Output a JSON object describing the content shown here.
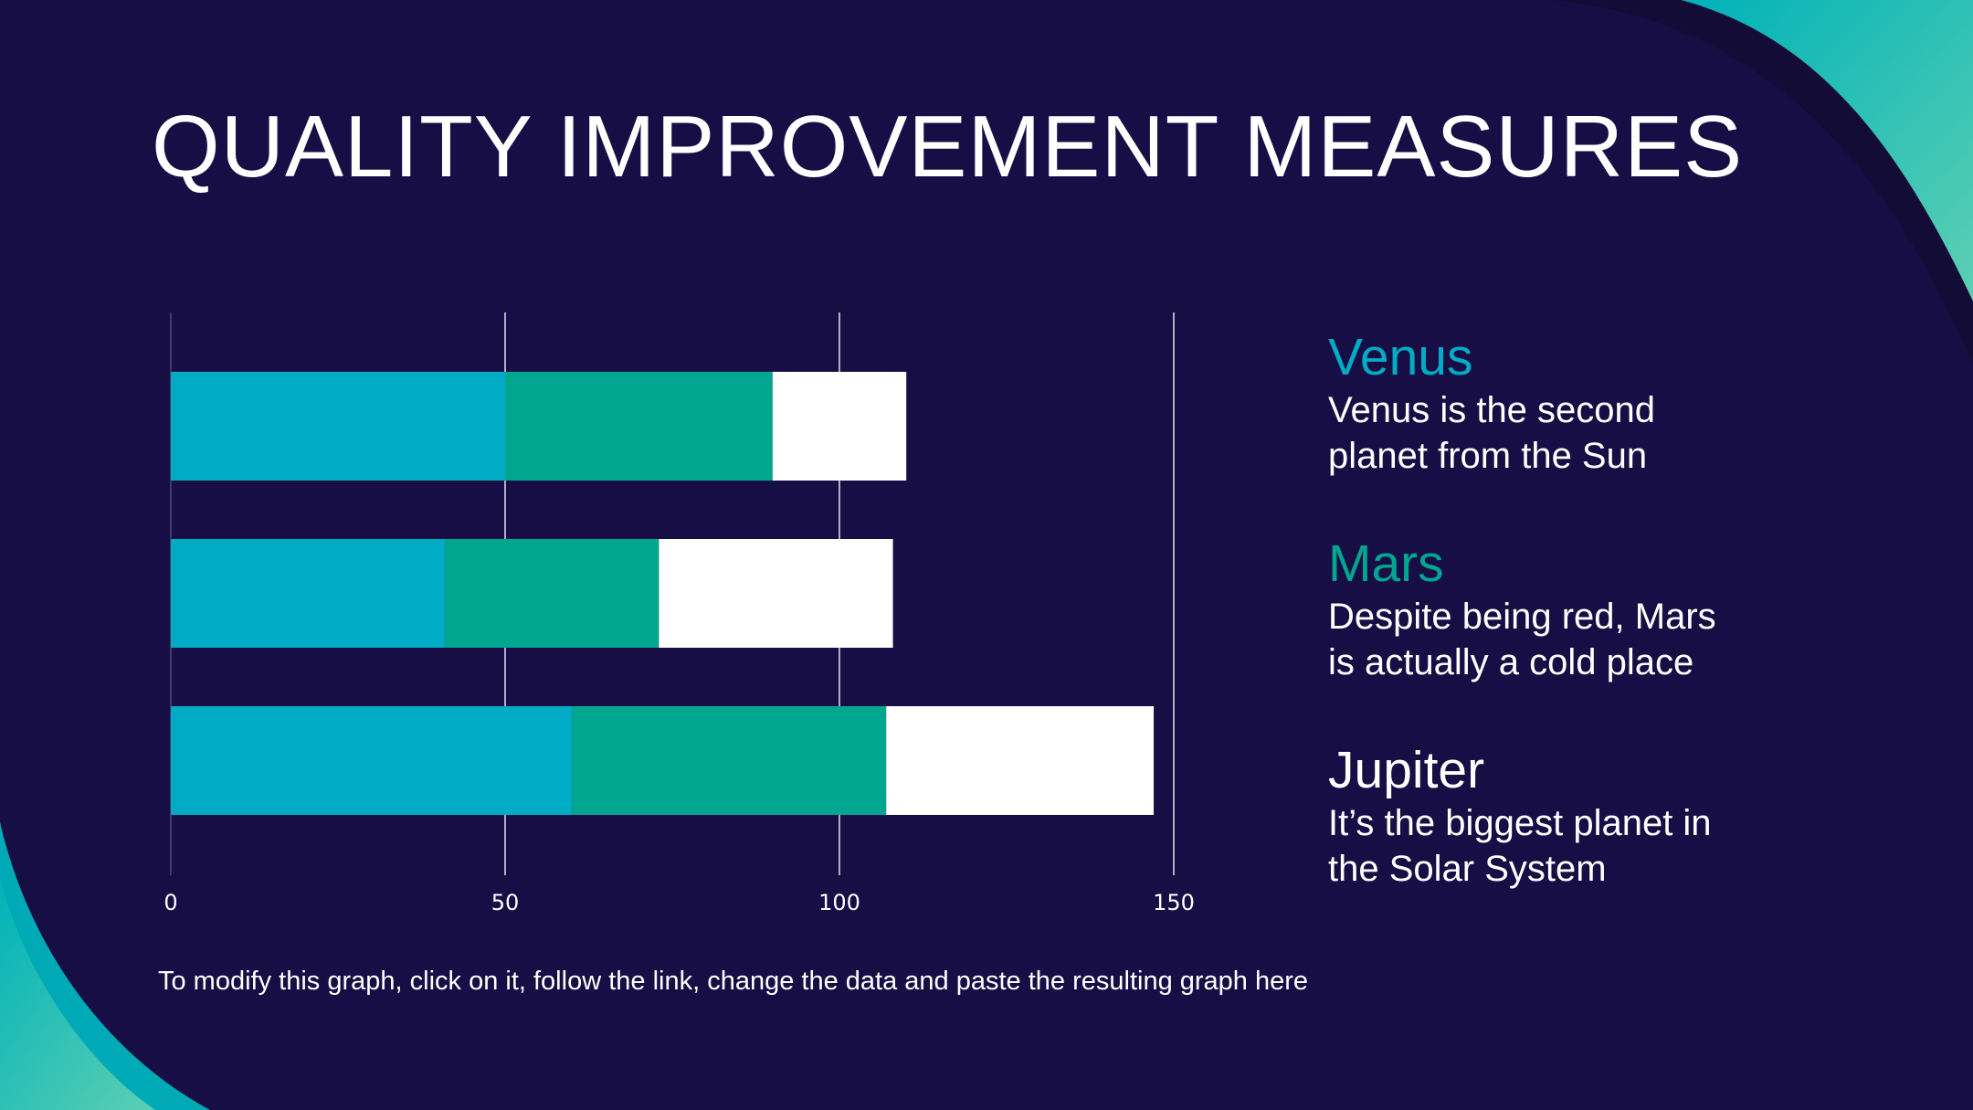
{
  "slide": {
    "title": "QUALITY IMPROVEMENT MEASURES",
    "footnote": "To modify this graph, click on it, follow the link, change the data and paste the resulting graph here"
  },
  "colors": {
    "background": "#170e45",
    "venus": "#00abc5",
    "mars": "#00a690",
    "jupiter": "#ffffff",
    "wave_light": "#4ec9b2",
    "wave_mid": "#00b2b8",
    "wave_dark": "#120c36"
  },
  "legend": [
    {
      "name": "Venus",
      "description": "Venus is the second planet from the Sun",
      "desc_line1": "Venus is the second",
      "desc_line2": "planet from the Sun",
      "color": "#00abc5"
    },
    {
      "name": "Mars",
      "description": "Despite being red, Mars is actually a cold place",
      "desc_line1": "Despite being red, Mars",
      "desc_line2": "is actually a cold place",
      "color": "#00a690"
    },
    {
      "name": "Jupiter",
      "description": "It’s the biggest planet in the Solar System",
      "desc_line1": "It’s the biggest planet in",
      "desc_line2": "the Solar System",
      "color": "#ffffff"
    }
  ],
  "chart_data": {
    "type": "bar",
    "orientation": "horizontal",
    "stacked": true,
    "categories": [
      "",
      "",
      ""
    ],
    "series": [
      {
        "values": [
          50,
          41,
          60
        ],
        "color": "#00abc5"
      },
      {
        "values": [
          40,
          32,
          47
        ],
        "color": "#00a690"
      },
      {
        "values": [
          20,
          35,
          40
        ],
        "color": "#ffffff"
      }
    ],
    "xlim": [
      0,
      150
    ],
    "xticks": [
      0,
      50,
      100,
      150
    ],
    "xtick_labels": [
      "0",
      "50",
      "100",
      "150"
    ],
    "grid": "vertical",
    "title": "",
    "xlabel": "",
    "ylabel": ""
  }
}
